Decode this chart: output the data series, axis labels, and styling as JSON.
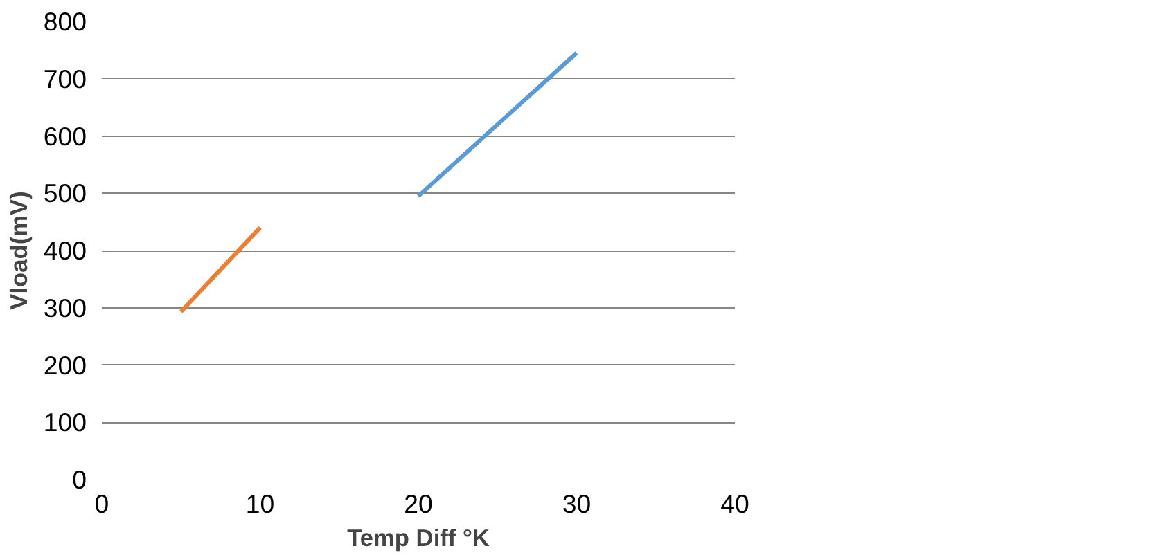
{
  "chart_data": {
    "type": "line",
    "xlabel": "Temp Diff °K",
    "ylabel": "Vload(mV)",
    "xlim": [
      0,
      40
    ],
    "xticks": [
      0,
      10,
      20,
      30,
      40
    ],
    "ylim": [
      0,
      800
    ],
    "yticks": [
      0,
      100,
      200,
      300,
      400,
      500,
      600,
      700,
      800
    ],
    "grid": "y",
    "series": [
      {
        "color": "#ed7d31",
        "x": [
          5,
          10
        ],
        "values": [
          293,
          440
        ]
      },
      {
        "color": "#5b9bd5",
        "x": [
          20,
          30
        ],
        "values": [
          495,
          745
        ]
      }
    ]
  }
}
